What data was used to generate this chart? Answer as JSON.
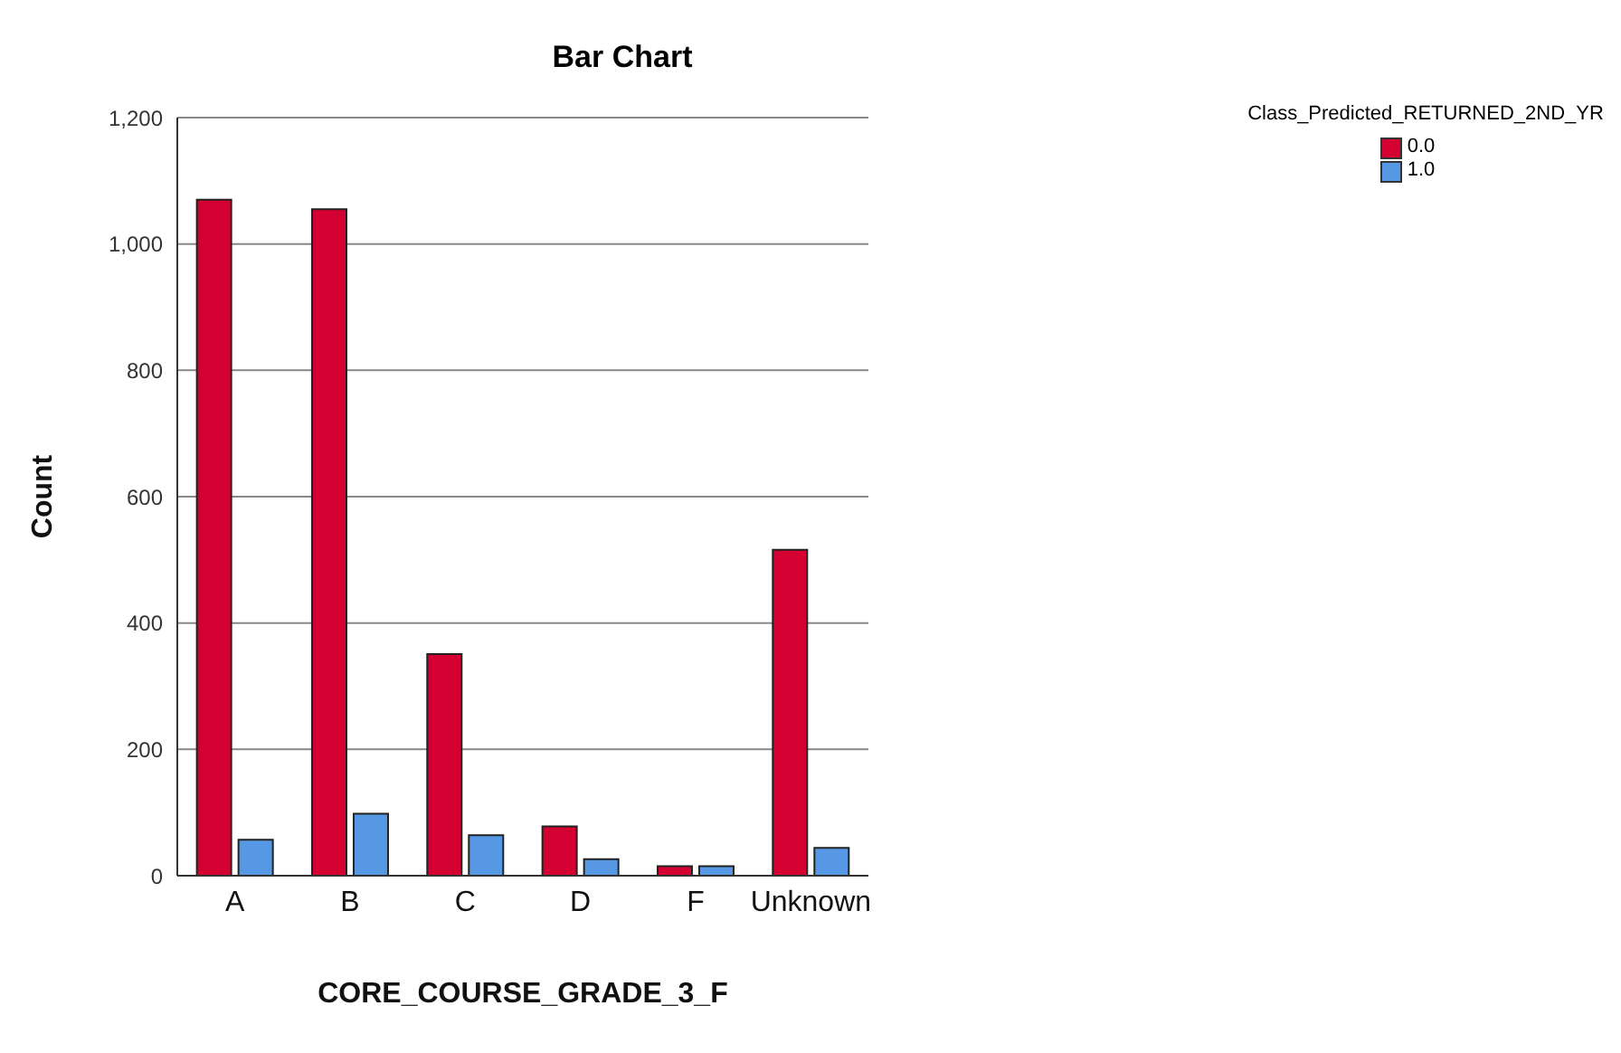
{
  "chart_data": {
    "type": "bar",
    "title": "Bar Chart",
    "xlabel": "CORE_COURSE_GRADE_3_F",
    "ylabel": "Count",
    "legend_title": "Class_Predicted_RETURNED_2ND_YR",
    "categories": [
      "A",
      "B",
      "C",
      "D",
      "F",
      "Unknown"
    ],
    "series": [
      {
        "name": "0.0",
        "color": "#d50032",
        "values": [
          1070,
          1055,
          351,
          78,
          15,
          516
        ]
      },
      {
        "name": "1.0",
        "color": "#5698e3",
        "values": [
          57,
          98,
          64,
          26,
          15,
          44
        ]
      }
    ],
    "ylim": [
      0,
      1200
    ],
    "yticks": [
      {
        "value": 0,
        "label": "0"
      },
      {
        "value": 200,
        "label": "200"
      },
      {
        "value": 400,
        "label": "400"
      },
      {
        "value": 600,
        "label": "600"
      },
      {
        "value": 800,
        "label": "800"
      },
      {
        "value": 1000,
        "label": "1,000"
      },
      {
        "value": 1200,
        "label": "1,200"
      }
    ],
    "grid": "y",
    "legend": "top right"
  }
}
